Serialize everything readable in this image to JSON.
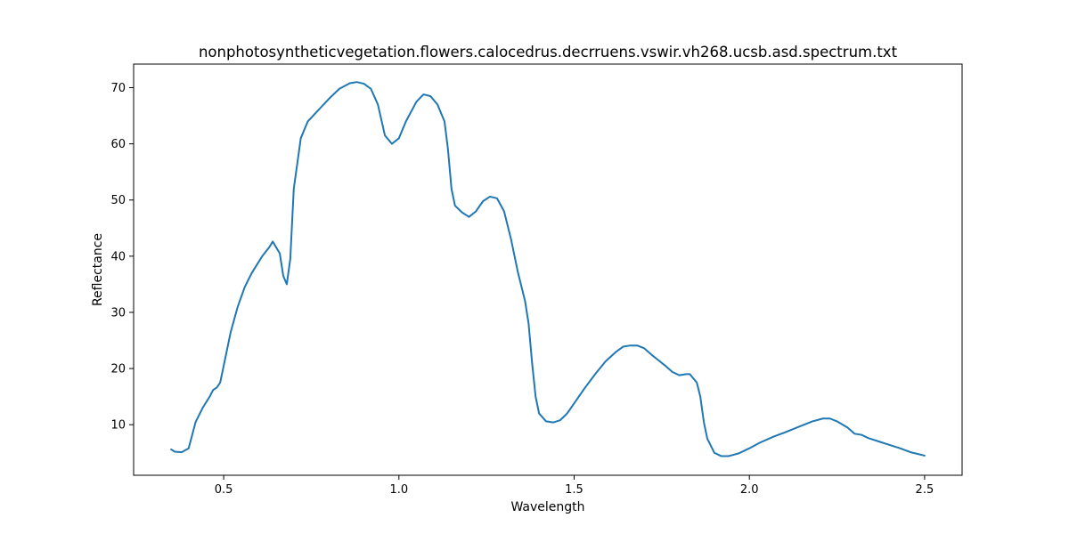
{
  "chart_data": {
    "type": "line",
    "title": "nonphotosyntheticvegetation.flowers.calocedrus.decrruens.vswir.vh268.ucsb.asd.spectrum.txt",
    "xlabel": "Wavelength",
    "ylabel": "Reflectance",
    "xlim": [
      0.243,
      2.607
    ],
    "ylim": [
      1.0,
      74.2
    ],
    "x_ticks": [
      0.5,
      1.0,
      1.5,
      2.0,
      2.5
    ],
    "x_tick_labels": [
      "0.5",
      "1.0",
      "1.5",
      "2.0",
      "2.5"
    ],
    "y_ticks": [
      10,
      20,
      30,
      40,
      50,
      60,
      70
    ],
    "y_tick_labels": [
      "10",
      "20",
      "30",
      "40",
      "50",
      "60",
      "70"
    ],
    "grid": false,
    "legend": "none",
    "line_color": "#1f77b4",
    "series": [
      {
        "points": [
          [
            0.35,
            5.6
          ],
          [
            0.36,
            5.2
          ],
          [
            0.38,
            5.1
          ],
          [
            0.4,
            5.8
          ],
          [
            0.42,
            10.5
          ],
          [
            0.44,
            13.0
          ],
          [
            0.46,
            15.0
          ],
          [
            0.47,
            16.2
          ],
          [
            0.48,
            16.6
          ],
          [
            0.49,
            17.5
          ],
          [
            0.5,
            20.5
          ],
          [
            0.52,
            26.5
          ],
          [
            0.54,
            31.0
          ],
          [
            0.56,
            34.5
          ],
          [
            0.58,
            37.0
          ],
          [
            0.6,
            39.0
          ],
          [
            0.61,
            40.0
          ],
          [
            0.63,
            41.6
          ],
          [
            0.64,
            42.6
          ],
          [
            0.66,
            40.5
          ],
          [
            0.67,
            36.5
          ],
          [
            0.68,
            35.0
          ],
          [
            0.69,
            39.5
          ],
          [
            0.7,
            52.0
          ],
          [
            0.72,
            61.0
          ],
          [
            0.74,
            64.0
          ],
          [
            0.77,
            66.0
          ],
          [
            0.8,
            68.0
          ],
          [
            0.83,
            69.8
          ],
          [
            0.86,
            70.8
          ],
          [
            0.88,
            71.0
          ],
          [
            0.9,
            70.7
          ],
          [
            0.92,
            69.8
          ],
          [
            0.94,
            67.0
          ],
          [
            0.96,
            61.5
          ],
          [
            0.98,
            60.0
          ],
          [
            1.0,
            61.0
          ],
          [
            1.02,
            64.0
          ],
          [
            1.05,
            67.5
          ],
          [
            1.07,
            68.8
          ],
          [
            1.09,
            68.5
          ],
          [
            1.11,
            67.0
          ],
          [
            1.13,
            64.0
          ],
          [
            1.14,
            59.0
          ],
          [
            1.15,
            52.0
          ],
          [
            1.16,
            49.0
          ],
          [
            1.18,
            47.8
          ],
          [
            1.2,
            47.0
          ],
          [
            1.22,
            48.0
          ],
          [
            1.24,
            49.8
          ],
          [
            1.26,
            50.6
          ],
          [
            1.28,
            50.3
          ],
          [
            1.3,
            48.0
          ],
          [
            1.32,
            43.0
          ],
          [
            1.34,
            37.0
          ],
          [
            1.36,
            32.0
          ],
          [
            1.37,
            28.0
          ],
          [
            1.38,
            21.0
          ],
          [
            1.39,
            15.0
          ],
          [
            1.4,
            12.0
          ],
          [
            1.42,
            10.6
          ],
          [
            1.44,
            10.4
          ],
          [
            1.46,
            10.8
          ],
          [
            1.48,
            12.0
          ],
          [
            1.5,
            13.8
          ],
          [
            1.53,
            16.5
          ],
          [
            1.56,
            19.0
          ],
          [
            1.59,
            21.3
          ],
          [
            1.62,
            23.0
          ],
          [
            1.64,
            23.9
          ],
          [
            1.66,
            24.1
          ],
          [
            1.68,
            24.1
          ],
          [
            1.7,
            23.6
          ],
          [
            1.72,
            22.5
          ],
          [
            1.74,
            21.5
          ],
          [
            1.76,
            20.5
          ],
          [
            1.78,
            19.4
          ],
          [
            1.8,
            18.8
          ],
          [
            1.82,
            19.0
          ],
          [
            1.83,
            19.0
          ],
          [
            1.85,
            17.5
          ],
          [
            1.86,
            15.0
          ],
          [
            1.87,
            10.5
          ],
          [
            1.88,
            7.5
          ],
          [
            1.9,
            5.0
          ],
          [
            1.92,
            4.4
          ],
          [
            1.94,
            4.4
          ],
          [
            1.97,
            4.9
          ],
          [
            2.0,
            5.8
          ],
          [
            2.03,
            6.8
          ],
          [
            2.07,
            7.9
          ],
          [
            2.1,
            8.6
          ],
          [
            2.14,
            9.6
          ],
          [
            2.18,
            10.6
          ],
          [
            2.21,
            11.1
          ],
          [
            2.23,
            11.1
          ],
          [
            2.25,
            10.6
          ],
          [
            2.28,
            9.5
          ],
          [
            2.3,
            8.4
          ],
          [
            2.32,
            8.2
          ],
          [
            2.34,
            7.6
          ],
          [
            2.37,
            7.0
          ],
          [
            2.4,
            6.4
          ],
          [
            2.43,
            5.8
          ],
          [
            2.46,
            5.1
          ],
          [
            2.48,
            4.8
          ],
          [
            2.5,
            4.5
          ]
        ]
      }
    ]
  }
}
